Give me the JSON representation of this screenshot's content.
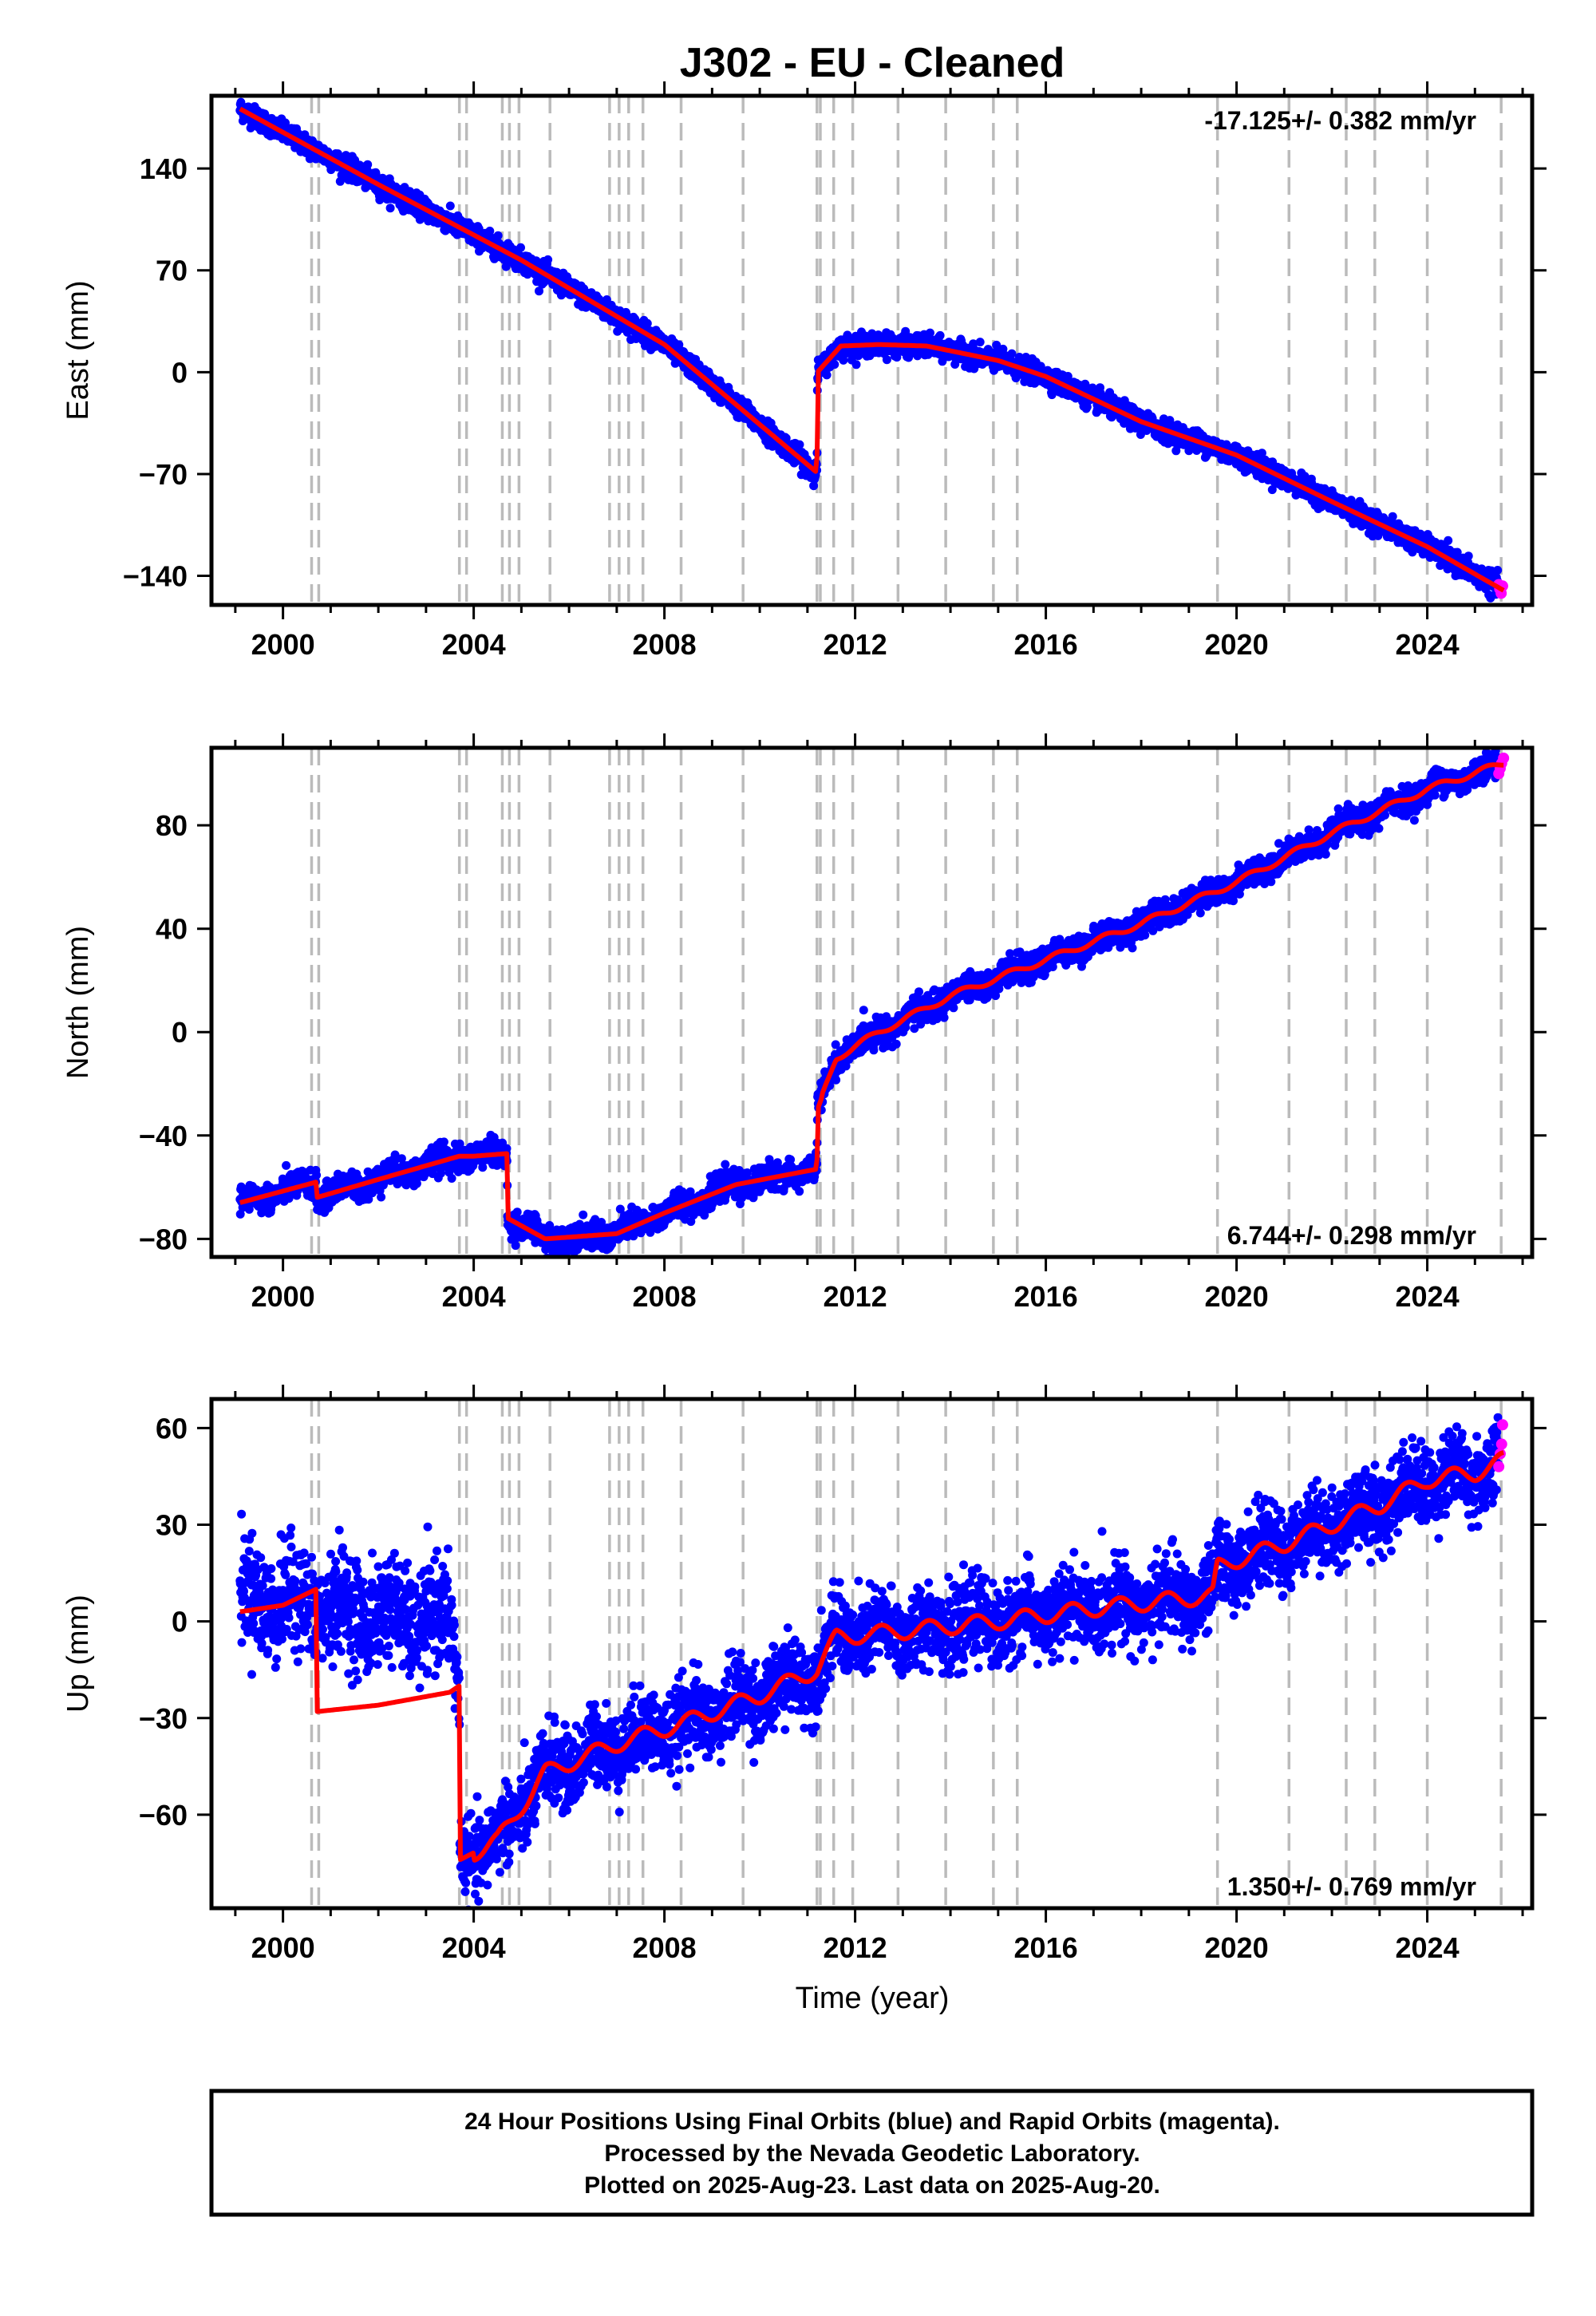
{
  "title": "J302  - EU - Cleaned",
  "xlabel": "Time (year)",
  "footer": {
    "line1": "24 Hour Positions Using Final Orbits (blue) and Rapid Orbits (magenta).",
    "line2": "Processed by the Nevada Geodetic Laboratory.",
    "line3": "Plotted on 2025-Aug-23. Last data on 2025-Aug-20."
  },
  "colors": {
    "final_orbits": "#0000ff",
    "rapid_orbits": "#ff00ff",
    "model": "#ff0000",
    "event_lines": "#bbbbbb"
  },
  "chart_data": [
    {
      "type": "scatter",
      "panel": "east",
      "ylabel": "East (mm)",
      "rate_text": "-17.125+/- 0.382 mm/yr",
      "xlim": [
        1998.5,
        2026.2
      ],
      "ylim": [
        -160,
        190
      ],
      "yticks": [
        -140,
        -70,
        0,
        70,
        140
      ],
      "ytick_labels": [
        "−140",
        "−70",
        "0",
        "70",
        "140"
      ],
      "xticks": [
        2000,
        2004,
        2008,
        2012,
        2016,
        2020,
        2024
      ],
      "xtick_labels": [
        "2000",
        "2004",
        "2008",
        "2012",
        "2016",
        "2020",
        "2024"
      ],
      "event_lines": [
        2000.6,
        2000.75,
        2003.7,
        2003.85,
        2004.6,
        2004.75,
        2004.95,
        2005.6,
        2006.85,
        2007.05,
        2007.25,
        2007.55,
        2008.35,
        2009.65,
        2011.2,
        2011.27,
        2011.55,
        2011.95,
        2012.9,
        2013.9,
        2014.9,
        2015.4,
        2019.6,
        2021.1,
        2022.3,
        2022.9,
        2024.0,
        2025.55
      ],
      "model_x": [
        1999.1,
        2002.0,
        2005.0,
        2008.0,
        2011.2,
        2011.21,
        2011.7,
        2012.5,
        2013.5,
        2015.0,
        2016.0,
        2018.0,
        2020.0,
        2022.0,
        2024.0,
        2025.6
      ],
      "model_y": [
        181,
        129,
        77,
        19,
        -69,
        0,
        18,
        19,
        18,
        8,
        -3,
        -34,
        -57,
        -89,
        -120,
        -150
      ],
      "scatter_spread": 3.5,
      "rapid_x": [
        2025.5,
        2025.52,
        2025.55,
        2025.58
      ],
      "rapid_y": [
        -146,
        -149,
        -152,
        -147
      ]
    },
    {
      "type": "scatter",
      "panel": "north",
      "ylabel": "North (mm)",
      "rate_text": "6.744+/- 0.298 mm/yr",
      "xlim": [
        1998.5,
        2026.2
      ],
      "ylim": [
        -87,
        110
      ],
      "yticks": [
        -80,
        -40,
        0,
        40,
        80
      ],
      "ytick_labels": [
        "−80",
        "−40",
        "0",
        "40",
        "80"
      ],
      "xticks": [
        2000,
        2004,
        2008,
        2012,
        2016,
        2020,
        2024
      ],
      "xtick_labels": [
        "2000",
        "2004",
        "2008",
        "2012",
        "2016",
        "2020",
        "2024"
      ],
      "event_lines": [
        2000.6,
        2000.75,
        2003.7,
        2003.85,
        2004.6,
        2004.75,
        2004.95,
        2005.6,
        2006.85,
        2007.05,
        2007.25,
        2007.55,
        2008.35,
        2009.65,
        2011.2,
        2011.27,
        2011.55,
        2011.95,
        2012.9,
        2013.9,
        2014.9,
        2015.4,
        2019.6,
        2021.1,
        2022.3,
        2022.9,
        2024.0,
        2025.55
      ],
      "model_x": [
        1999.1,
        2000.7,
        2000.71,
        2002.0,
        2003.7,
        2004.0,
        2004.7,
        2004.71,
        2005.5,
        2007.0,
        2008.0,
        2009.5,
        2011.2,
        2011.21,
        2011.6,
        2012.5,
        2014.0,
        2016.0,
        2018.0,
        2020.0,
        2022.0,
        2024.0,
        2025.6
      ],
      "model_y": [
        -66,
        -58,
        -64,
        -57,
        -48,
        -48,
        -47,
        -72,
        -80,
        -78,
        -70,
        -59,
        -53,
        -30,
        -10,
        0,
        14,
        28,
        42,
        58,
        77,
        94,
        104
      ],
      "scatter_spread": 2.5,
      "rapid_x": [
        2025.5,
        2025.53,
        2025.56,
        2025.6
      ],
      "rapid_y": [
        100,
        102,
        104,
        106
      ]
    },
    {
      "type": "scatter",
      "panel": "up",
      "ylabel": "Up (mm)",
      "rate_text": "1.350+/- 0.769 mm/yr",
      "xlim": [
        1998.5,
        2026.2
      ],
      "ylim": [
        -89,
        69
      ],
      "yticks": [
        -60,
        -30,
        0,
        30,
        60
      ],
      "ytick_labels": [
        "−60",
        "−30",
        "0",
        "30",
        "60"
      ],
      "xticks": [
        2000,
        2004,
        2008,
        2012,
        2016,
        2020,
        2024
      ],
      "xtick_labels": [
        "2000",
        "2004",
        "2008",
        "2012",
        "2016",
        "2020",
        "2024"
      ],
      "event_lines": [
        2000.6,
        2000.75,
        2003.7,
        2003.85,
        2004.6,
        2004.75,
        2004.95,
        2005.6,
        2006.85,
        2007.05,
        2007.25,
        2007.55,
        2008.35,
        2009.65,
        2011.2,
        2011.27,
        2011.55,
        2011.95,
        2012.9,
        2013.9,
        2014.9,
        2015.4,
        2019.6,
        2021.1,
        2022.3,
        2022.9,
        2024.0,
        2025.55
      ],
      "model_x": [
        1999.1,
        2000.0,
        2000.7,
        2000.71,
        2002.0,
        2003.5,
        2003.7,
        2003.71,
        2004.5,
        2005.5,
        2007.0,
        2008.5,
        2010.0,
        2011.2,
        2011.6,
        2013.0,
        2015.0,
        2017.0,
        2019.5,
        2019.6,
        2021.0,
        2023.0,
        2024.0,
        2025.0,
        2025.6
      ],
      "model_y": [
        3,
        5,
        10,
        -28,
        -26,
        -22,
        -20,
        -74,
        -68,
        -47,
        -38,
        -31,
        -23,
        -15,
        -5,
        -3,
        0,
        4,
        8,
        17,
        24,
        36,
        44,
        46,
        50
      ],
      "scatter_spread": 6,
      "rapid_x": [
        2025.5,
        2025.53,
        2025.56,
        2025.58
      ],
      "rapid_y": [
        48,
        52,
        55,
        61
      ]
    }
  ]
}
